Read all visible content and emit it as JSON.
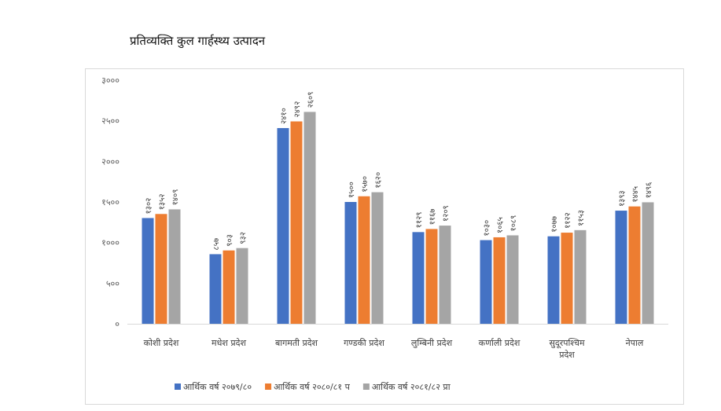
{
  "chart_data": {
    "type": "bar",
    "title": "प्रतिव्यक्ति कुल गार्हस्थ्य उत्पादन",
    "xlabel": "",
    "ylabel": "",
    "ylim": [
      0,
      3000
    ],
    "yticks": [
      0,
      500,
      1000,
      1500,
      2000,
      2500,
      3000
    ],
    "ytick_labels": [
      "०",
      "५००",
      "१०००",
      "१५००",
      "२०००",
      "२५००",
      "३०००"
    ],
    "grid": false,
    "legend_position": "bottom",
    "categories": [
      [
        "कोशी प्रदेश"
      ],
      [
        "मधेश प्रदेश"
      ],
      [
        "बागमती प्रदेश"
      ],
      [
        "गण्डकी प्रदेश"
      ],
      [
        "लुम्बिनी प्रदेश"
      ],
      [
        "कर्णाली प्रदेश"
      ],
      [
        "सुदूरपश्चिम",
        "प्रदेश"
      ],
      [
        "नेपाल"
      ]
    ],
    "series": [
      {
        "name": "आर्थिक वर्ष २०७९/८०",
        "color": "#4472C4",
        "values": [
          1302,
          857,
          2410,
          1500,
          1129,
          1030,
          1077,
          1393
        ],
        "labels": [
          "१३०२",
          "८५७",
          "२४१०",
          "१५००",
          "११२९",
          "१०३०",
          "१०७७",
          "१३९३"
        ]
      },
      {
        "name": "आर्थिक वर्ष २०८०/८१ प",
        "color": "#ED7D31",
        "values": [
          1352,
          903,
          2492,
          1570,
          1167,
          1065,
          1122,
          1445
        ],
        "labels": [
          "१३५२",
          "९०३",
          "२४९२",
          "१५७०",
          "११६७",
          "१०६५",
          "११२२",
          "१४४५"
        ]
      },
      {
        "name": "आर्थिक वर्ष २०८१/८२ प्रा",
        "color": "#A5A5A5",
        "values": [
          1409,
          932,
          2609,
          1620,
          1209,
          1089,
          1153,
          1496
        ],
        "labels": [
          "१४०९",
          "९३२",
          "२६०९",
          "१६२०",
          "१२०९",
          "१०८९",
          "११५३",
          "१४९६"
        ]
      }
    ]
  }
}
